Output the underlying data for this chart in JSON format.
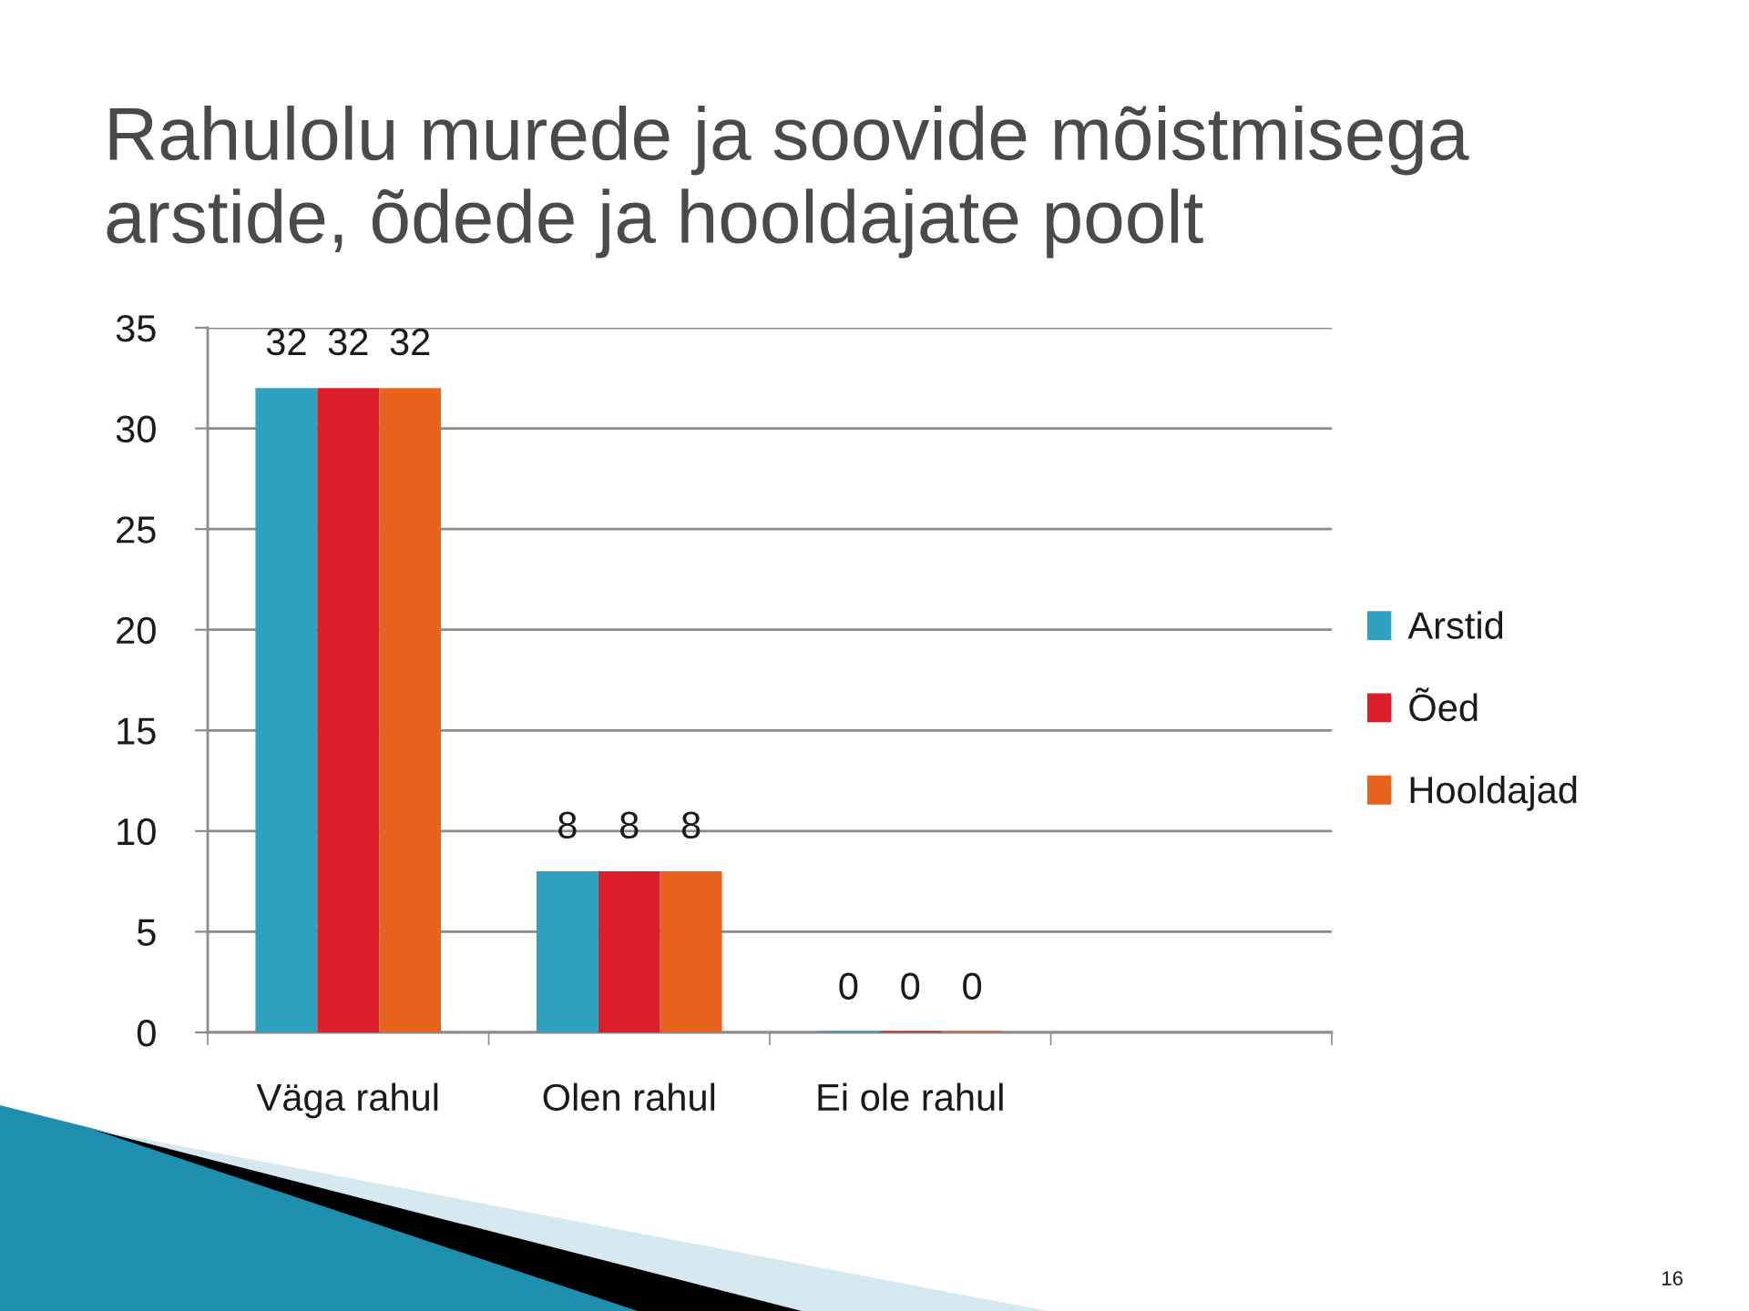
{
  "chart_data": {
    "type": "bar",
    "title": "Rahulolu murede ja soovide mõistmisega\narstide, õdede ja hooldajate poolt",
    "categories": [
      "Väga rahul",
      "Olen rahul",
      "Ei ole rahul",
      null
    ],
    "series": [
      {
        "name": "Arstid",
        "color": "#2ea1bf",
        "values": [
          32,
          8,
          0,
          null
        ]
      },
      {
        "name": "Õed",
        "color": "#da1f2b",
        "values": [
          32,
          8,
          0,
          null
        ]
      },
      {
        "name": "Hooldajad",
        "color": "#e8631e",
        "values": [
          32,
          8,
          0,
          null
        ]
      }
    ],
    "ylim": [
      0,
      35
    ],
    "yticks": [
      0,
      5,
      10,
      15,
      20,
      25,
      30,
      35
    ],
    "grid": "y",
    "legend": "right",
    "data_labels": true,
    "annotations": [
      "16"
    ]
  }
}
